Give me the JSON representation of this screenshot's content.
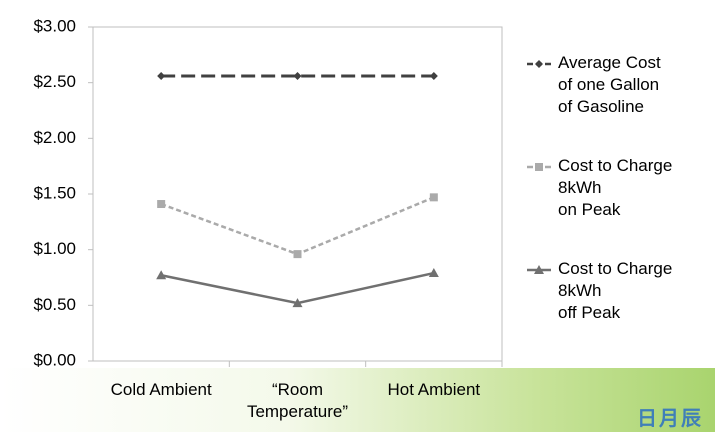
{
  "chart_data": {
    "type": "line",
    "categories": [
      "Cold Ambient",
      "“Room\nTemperature”",
      "Hot Ambient"
    ],
    "series": [
      {
        "name": "Average Cost\nof one Gallon\nof Gasoline",
        "color": "#404040",
        "dash": "dashed",
        "marker": "diamond",
        "values": [
          2.56,
          2.56,
          2.56
        ]
      },
      {
        "name": "Cost to Charge\n8kWh\non Peak",
        "color": "#aaaaaa",
        "dash": "dotted",
        "marker": "square",
        "values": [
          1.41,
          0.96,
          1.47
        ]
      },
      {
        "name": "Cost to Charge\n8kWh\noff Peak",
        "color": "#707070",
        "dash": "solid",
        "marker": "triangle",
        "values": [
          0.77,
          0.52,
          0.79
        ]
      }
    ],
    "ylim": [
      0,
      3
    ],
    "yticks": [
      {
        "value": 0,
        "label": "$0.00"
      },
      {
        "value": 0.5,
        "label": "$0.50"
      },
      {
        "value": 1,
        "label": "$1.00"
      },
      {
        "value": 1.5,
        "label": "$1.50"
      },
      {
        "value": 2,
        "label": "$2.00"
      },
      {
        "value": 2.5,
        "label": "$2.50"
      },
      {
        "value": 3,
        "label": "$3.00"
      }
    ],
    "grid": false,
    "legend": "right",
    "watermark": "日月辰"
  }
}
